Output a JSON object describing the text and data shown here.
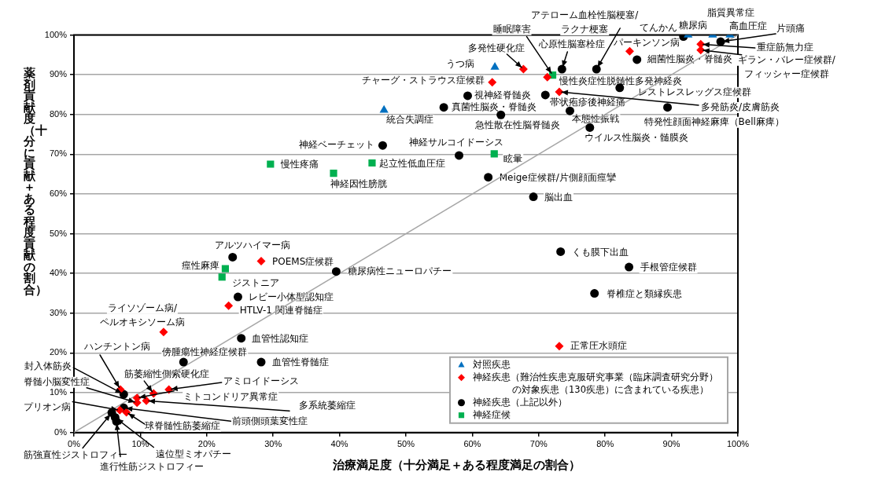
{
  "chart_data": {
    "type": "scatter",
    "xlabel": "治療満足度（十分満足＋ある程度満足の割合）",
    "ylabel": "薬剤貢献度（十分に貢献＋ある程度貢献の割合）",
    "xlim": [
      0,
      100
    ],
    "ylim": [
      0,
      100
    ],
    "xticks": [
      {
        "value": 0,
        "label": "0%"
      },
      {
        "value": 10,
        "label": "10%"
      },
      {
        "value": 20,
        "label": "20%"
      },
      {
        "value": 30,
        "label": "30%"
      },
      {
        "value": 40,
        "label": "40%"
      },
      {
        "value": 50,
        "label": "50%"
      },
      {
        "value": 60,
        "label": "60%"
      },
      {
        "value": 70,
        "label": "70%"
      },
      {
        "value": 80,
        "label": "80%"
      },
      {
        "value": 90,
        "label": "90%"
      },
      {
        "value": 100,
        "label": "100%"
      }
    ],
    "yticks": [
      {
        "value": 0,
        "label": "0%"
      },
      {
        "value": 10,
        "label": "10%"
      },
      {
        "value": 20,
        "label": "20%"
      },
      {
        "value": 30,
        "label": "30%"
      },
      {
        "value": 40,
        "label": "40%"
      },
      {
        "value": 50,
        "label": "50%"
      },
      {
        "value": 60,
        "label": "60%"
      },
      {
        "value": 70,
        "label": "70%"
      },
      {
        "value": 80,
        "label": "80%"
      },
      {
        "value": 90,
        "label": "90%"
      },
      {
        "value": 100,
        "label": "100%"
      }
    ],
    "grid": "y",
    "legend": "bottom right",
    "series": [
      {
        "name": "対照疾患",
        "color": "#0070c0",
        "marker": "triangle",
        "x": [
          63.4,
          46.7,
          92.5,
          96.2,
          98.8
        ],
        "values": [
          91.9,
          81.1,
          100,
          100,
          100
        ]
      },
      {
        "name": "神経疾患（難治性疾患克服研究事業（臨床調査研究分野）の対象疾患（130疾患）に含まれている疾患）",
        "color": "#ff0000",
        "marker": "diamond",
        "x": [
          67.7,
          63.0,
          71.3,
          73.1,
          83.7,
          94.4,
          94.4,
          73.1,
          28.2,
          23.3,
          13.5,
          7.0,
          12.0,
          14.3,
          9.5,
          10.9,
          9.5,
          7.9,
          6.9
        ],
        "values": [
          91.4,
          88.1,
          89.4,
          85.7,
          95.9,
          97.7,
          96.2,
          21.7,
          43.1,
          31.9,
          25.3,
          10.8,
          9.8,
          10.8,
          8.7,
          8.0,
          7.5,
          5.1,
          5.6
        ]
      },
      {
        "name": "神経疾患（上記以外）",
        "color": "#000000",
        "marker": "circle",
        "x": [
          91.8,
          97.4,
          84.8,
          73.5,
          78.7,
          59.3,
          55.7,
          71.0,
          74.7,
          82.2,
          89.4,
          64.3,
          77.7,
          46.5,
          58.0,
          62.4,
          69.2,
          73.3,
          83.6,
          78.4,
          39.5,
          23.9,
          24.7,
          25.2,
          16.5,
          28.2,
          7.5,
          7.5,
          5.7,
          6.4,
          6.2
        ],
        "values": [
          99.6,
          98.3,
          93.8,
          91.4,
          91.4,
          84.7,
          81.8,
          84.9,
          80.9,
          86.7,
          81.8,
          79.9,
          76.7,
          72.2,
          69.7,
          64.2,
          59.3,
          45.5,
          41.6,
          35.0,
          40.5,
          44.1,
          34.1,
          23.7,
          17.7,
          17.7,
          9.6,
          6.2,
          5.0,
          2.8,
          3.8
        ]
      },
      {
        "name": "神経症候",
        "color": "#00b050",
        "marker": "square",
        "x": [
          72.1,
          29.6,
          39.1,
          44.9,
          63.3,
          22.8,
          22.3
        ],
        "values": [
          89.9,
          67.5,
          65.2,
          67.8,
          70.1,
          41.2,
          39.1
        ]
      },
      {
        "type": "line",
        "color": "#a6a6a6",
        "marker": "none",
        "x": [
          0,
          100
        ],
        "values": [
          0,
          100
        ]
      }
    ],
    "annotations": [
      {
        "text": "うつ病",
        "x": 63.4,
        "y": 91.9
      },
      {
        "text": "統合失調症",
        "x": 46.7,
        "y": 81.1
      },
      {
        "text": "糖尿病",
        "x": 92.5,
        "y": 100
      },
      {
        "text": "脂質異常症",
        "x": 96.2,
        "y": 100
      },
      {
        "text": "高血圧症",
        "x": 98.8,
        "y": 100
      },
      {
        "text": "多発性硬化症",
        "x": 67.7,
        "y": 91.4
      },
      {
        "text": "チャーグ・ストラウス症候群",
        "x": 63.0,
        "y": 88.1
      },
      {
        "text": "慢性炎症性脱髄性多発神経炎",
        "x": 71.3,
        "y": 89.4
      },
      {
        "text": "多発筋炎/皮膚筋炎",
        "x": 73.1,
        "y": 85.7
      },
      {
        "text": "パーキンソン病",
        "x": 83.7,
        "y": 95.9
      },
      {
        "text": "重症筋無力症",
        "x": 94.4,
        "y": 97.7
      },
      {
        "text": "ギラン・バレー症候群/フィッシャー症候群",
        "x": 94.4,
        "y": 96.2
      },
      {
        "text": "正常圧水頭症",
        "x": 73.1,
        "y": 21.7
      },
      {
        "text": "POEMS症候群",
        "x": 28.2,
        "y": 43.1
      },
      {
        "text": "HTLV-1 関連脊髄症",
        "x": 23.3,
        "y": 31.9
      },
      {
        "text": "ライソゾーム病/ペルオキシソーム病",
        "x": 13.5,
        "y": 25.3
      },
      {
        "text": "ハンチントン病",
        "x": 7.0,
        "y": 10.8
      },
      {
        "text": "筋萎縮性側索硬化症",
        "x": 12.0,
        "y": 9.8
      },
      {
        "text": "アミロイドーシス",
        "x": 14.3,
        "y": 10.8
      },
      {
        "text": "ミトコンドリア異常症",
        "x": 9.5,
        "y": 8.7
      },
      {
        "text": "多系統萎縮症",
        "x": 10.9,
        "y": 8.0
      },
      {
        "text": "脊髄小脳変性症",
        "x": 9.5,
        "y": 7.5
      },
      {
        "text": "球脊髄性筋萎縮症",
        "x": 7.9,
        "y": 5.1
      },
      {
        "text": "プリオン病",
        "x": 6.9,
        "y": 5.6
      },
      {
        "text": "てんかん",
        "x": 91.8,
        "y": 99.6
      },
      {
        "text": "片頭痛",
        "x": 97.4,
        "y": 98.3
      },
      {
        "text": "細菌性脳炎・脊髄炎",
        "x": 84.8,
        "y": 93.8
      },
      {
        "text": "心原性脳塞栓症",
        "x": 73.5,
        "y": 91.4
      },
      {
        "text": "アテローム血栓性脳梗塞/ラクナ梗塞",
        "x": 78.7,
        "y": 91.4
      },
      {
        "text": "視神経脊髄炎",
        "x": 59.3,
        "y": 84.7
      },
      {
        "text": "真菌性脳炎・脊髄炎",
        "x": 55.7,
        "y": 81.8
      },
      {
        "text": "帯状疱疹後神経痛",
        "x": 71.0,
        "y": 84.9
      },
      {
        "text": "本態性振戦",
        "x": 74.7,
        "y": 80.9
      },
      {
        "text": "レストレスレッグス症候群",
        "x": 82.2,
        "y": 86.7
      },
      {
        "text": "特発性顔面神経麻痺（Bell麻痺）",
        "x": 89.4,
        "y": 81.8
      },
      {
        "text": "急性散在性脳脊髄炎",
        "x": 64.3,
        "y": 79.9
      },
      {
        "text": "ウイルス性脳炎・髄膜炎",
        "x": 77.7,
        "y": 76.7
      },
      {
        "text": "神経ベーチェット",
        "x": 46.5,
        "y": 72.2
      },
      {
        "text": "神経サルコイドーシス",
        "x": 58.0,
        "y": 69.7
      },
      {
        "text": "Meige症候群/片側顔面痙攣",
        "x": 62.4,
        "y": 64.2
      },
      {
        "text": "脳出血",
        "x": 69.2,
        "y": 59.3
      },
      {
        "text": "くも膜下出血",
        "x": 73.3,
        "y": 45.5
      },
      {
        "text": "手根管症候群",
        "x": 83.6,
        "y": 41.6
      },
      {
        "text": "脊椎症と類縁疾患",
        "x": 78.4,
        "y": 35.0
      },
      {
        "text": "糖尿病性ニューロパチー",
        "x": 39.5,
        "y": 40.5
      },
      {
        "text": "アルツハイマー病",
        "x": 23.9,
        "y": 44.1
      },
      {
        "text": "レビー小体型認知症",
        "x": 24.7,
        "y": 34.1
      },
      {
        "text": "血管性認知症",
        "x": 25.2,
        "y": 23.7
      },
      {
        "text": "傍腫瘍性神経症候群",
        "x": 16.5,
        "y": 17.7
      },
      {
        "text": "血管性脊髄症",
        "x": 28.2,
        "y": 17.7
      },
      {
        "text": "封入体筋炎",
        "x": 7.5,
        "y": 9.6
      },
      {
        "text": "前頭側頭葉変性症",
        "x": 7.5,
        "y": 6.2
      },
      {
        "text": "筋強直性ジストロフィー",
        "x": 5.7,
        "y": 5.0
      },
      {
        "text": "進行性筋ジストロフィー",
        "x": 6.4,
        "y": 2.8
      },
      {
        "text": "遠位型ミオパチー",
        "x": 6.2,
        "y": 3.8
      },
      {
        "text": "睡眠障害",
        "x": 72.1,
        "y": 89.9
      },
      {
        "text": "慢性疼痛",
        "x": 29.6,
        "y": 67.5
      },
      {
        "text": "神経因性膀胱",
        "x": 39.1,
        "y": 65.2
      },
      {
        "text": "起立性低血圧症",
        "x": 44.9,
        "y": 67.8
      },
      {
        "text": "眩暈",
        "x": 63.3,
        "y": 70.1
      },
      {
        "text": "痙性麻痺",
        "x": 22.8,
        "y": 41.2
      },
      {
        "text": "ジストニア",
        "x": 22.3,
        "y": 39.1
      }
    ]
  }
}
